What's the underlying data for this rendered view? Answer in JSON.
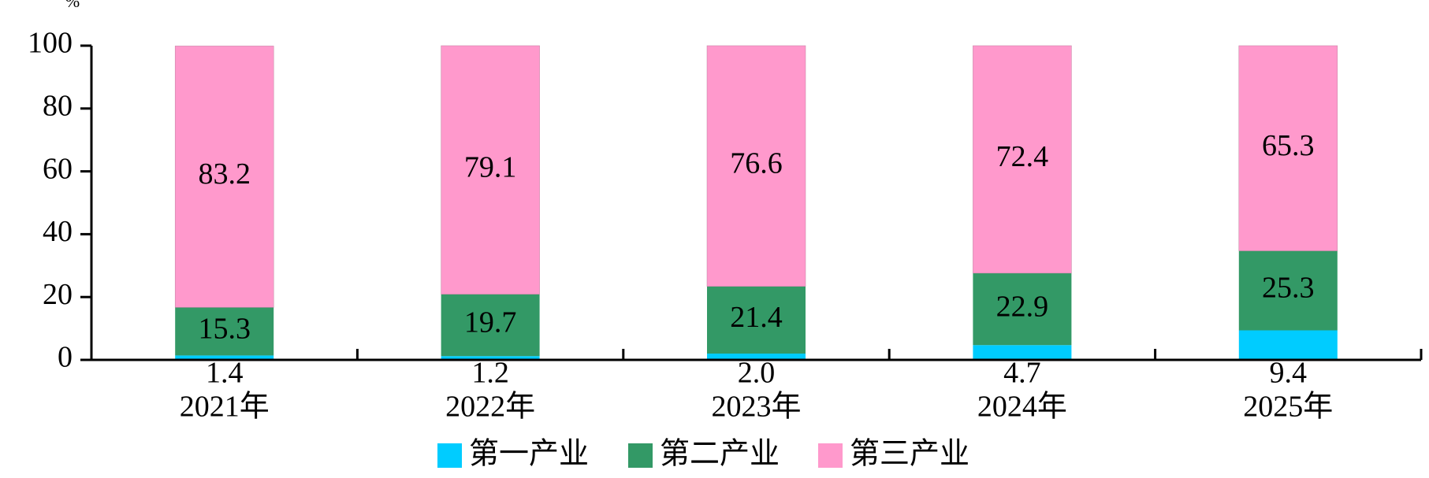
{
  "chart_data": {
    "type": "stacked_bar",
    "unit": "%",
    "categories": [
      "2021年",
      "2022年",
      "2023年",
      "2024年",
      "2025年"
    ],
    "series": [
      {
        "name": "第一产业",
        "color": "#00ccff",
        "values": [
          1.4,
          1.2,
          2.0,
          4.7,
          9.4
        ],
        "value_labels": [
          "1.4",
          "1.2",
          "2.0",
          "4.7",
          "9.4"
        ]
      },
      {
        "name": "第二产业",
        "color": "#339966",
        "values": [
          15.3,
          19.7,
          21.4,
          22.9,
          25.3
        ]
      },
      {
        "name": "第三产业",
        "color": "#ff99cc",
        "values": [
          83.2,
          79.1,
          76.6,
          72.4,
          65.3
        ]
      }
    ],
    "ylim": [
      0,
      100
    ],
    "yticks": [
      0,
      20,
      40,
      60,
      80,
      100
    ]
  }
}
